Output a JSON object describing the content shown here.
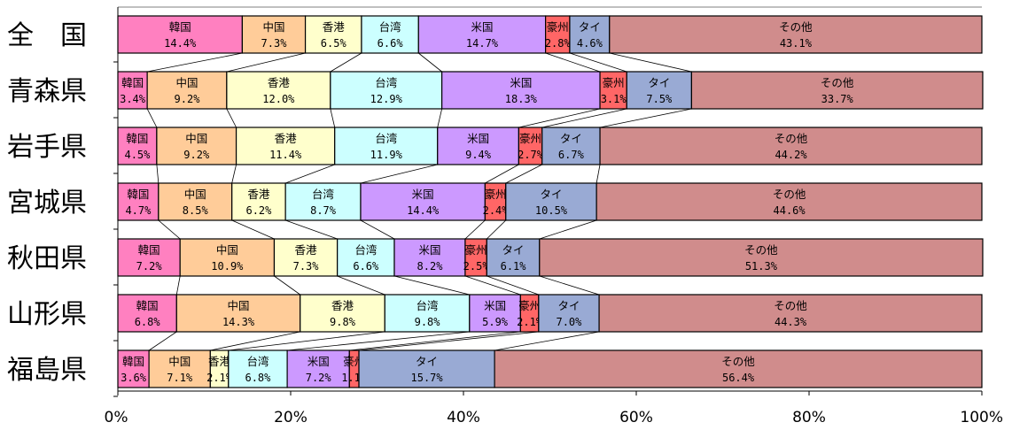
{
  "chart_data": {
    "type": "bar",
    "orientation": "horizontal",
    "stacked": "percent",
    "categories": [
      "全　国",
      "青森県",
      "岩手県",
      "宮城県",
      "秋田県",
      "山形県",
      "福島県"
    ],
    "series": [
      {
        "name": "韓国",
        "color": "#ff80c0",
        "values": [
          14.4,
          3.4,
          4.5,
          4.7,
          7.2,
          6.8,
          3.6
        ]
      },
      {
        "name": "中国",
        "color": "#ffcc99",
        "values": [
          7.3,
          9.2,
          9.2,
          8.5,
          10.9,
          14.3,
          7.1
        ]
      },
      {
        "name": "香港",
        "color": "#ffffcc",
        "values": [
          6.5,
          12.0,
          11.4,
          6.2,
          7.3,
          9.8,
          2.1
        ]
      },
      {
        "name": "台湾",
        "color": "#ccffff",
        "values": [
          6.6,
          12.9,
          11.9,
          8.7,
          6.6,
          9.8,
          6.8
        ]
      },
      {
        "name": "米国",
        "color": "#cc99ff",
        "values": [
          14.7,
          18.3,
          9.4,
          14.4,
          8.2,
          5.9,
          7.2
        ]
      },
      {
        "name": "豪州",
        "color": "#ff6666",
        "values": [
          2.8,
          3.1,
          2.7,
          2.4,
          2.5,
          2.1,
          1.1
        ]
      },
      {
        "name": "タイ",
        "color": "#99aad4",
        "values": [
          4.6,
          7.5,
          6.7,
          10.5,
          6.1,
          7.0,
          15.7
        ]
      },
      {
        "name": "その他",
        "color": "#d08c8c",
        "values": [
          43.1,
          33.7,
          44.2,
          44.6,
          51.3,
          44.3,
          56.4
        ]
      }
    ],
    "value_labels": [
      [
        "14.4%",
        "7.3%",
        "6.5%",
        "6.6%",
        "14.7%",
        "2.8%",
        "4.6%",
        "43.1%"
      ],
      [
        "3.4%",
        "9.2%",
        "12.0%",
        "12.9%",
        "18.3%",
        "3.1%",
        "7.5%",
        "33.7%"
      ],
      [
        "4.5%",
        "9.2%",
        "11.4%",
        "11.9%",
        "9.4%",
        "2.7%",
        "6.7%",
        "44.2%"
      ],
      [
        "4.7%",
        "8.5%",
        "6.2%",
        "8.7%",
        "14.4%",
        "2.4%",
        "10.5%",
        "44.6%"
      ],
      [
        "7.2%",
        "10.9%",
        "7.3%",
        "6.6%",
        "8.2%",
        "2.5%",
        "6.1%",
        "51.3%"
      ],
      [
        "6.8%",
        "14.3%",
        "9.8%",
        "9.8%",
        "5.9%",
        "2.1%",
        "7.0%",
        "44.3%"
      ],
      [
        "3.6%",
        "7.1%",
        "2.1%",
        "6.8%",
        "7.2%",
        "1.1%",
        "15.7%",
        "56.4%"
      ]
    ],
    "x_ticks": [
      "0%",
      "20%",
      "40%",
      "60%",
      "80%",
      "100%"
    ],
    "xlim": [
      0,
      100
    ],
    "grid": false,
    "legend": "none",
    "series_lines": true
  }
}
